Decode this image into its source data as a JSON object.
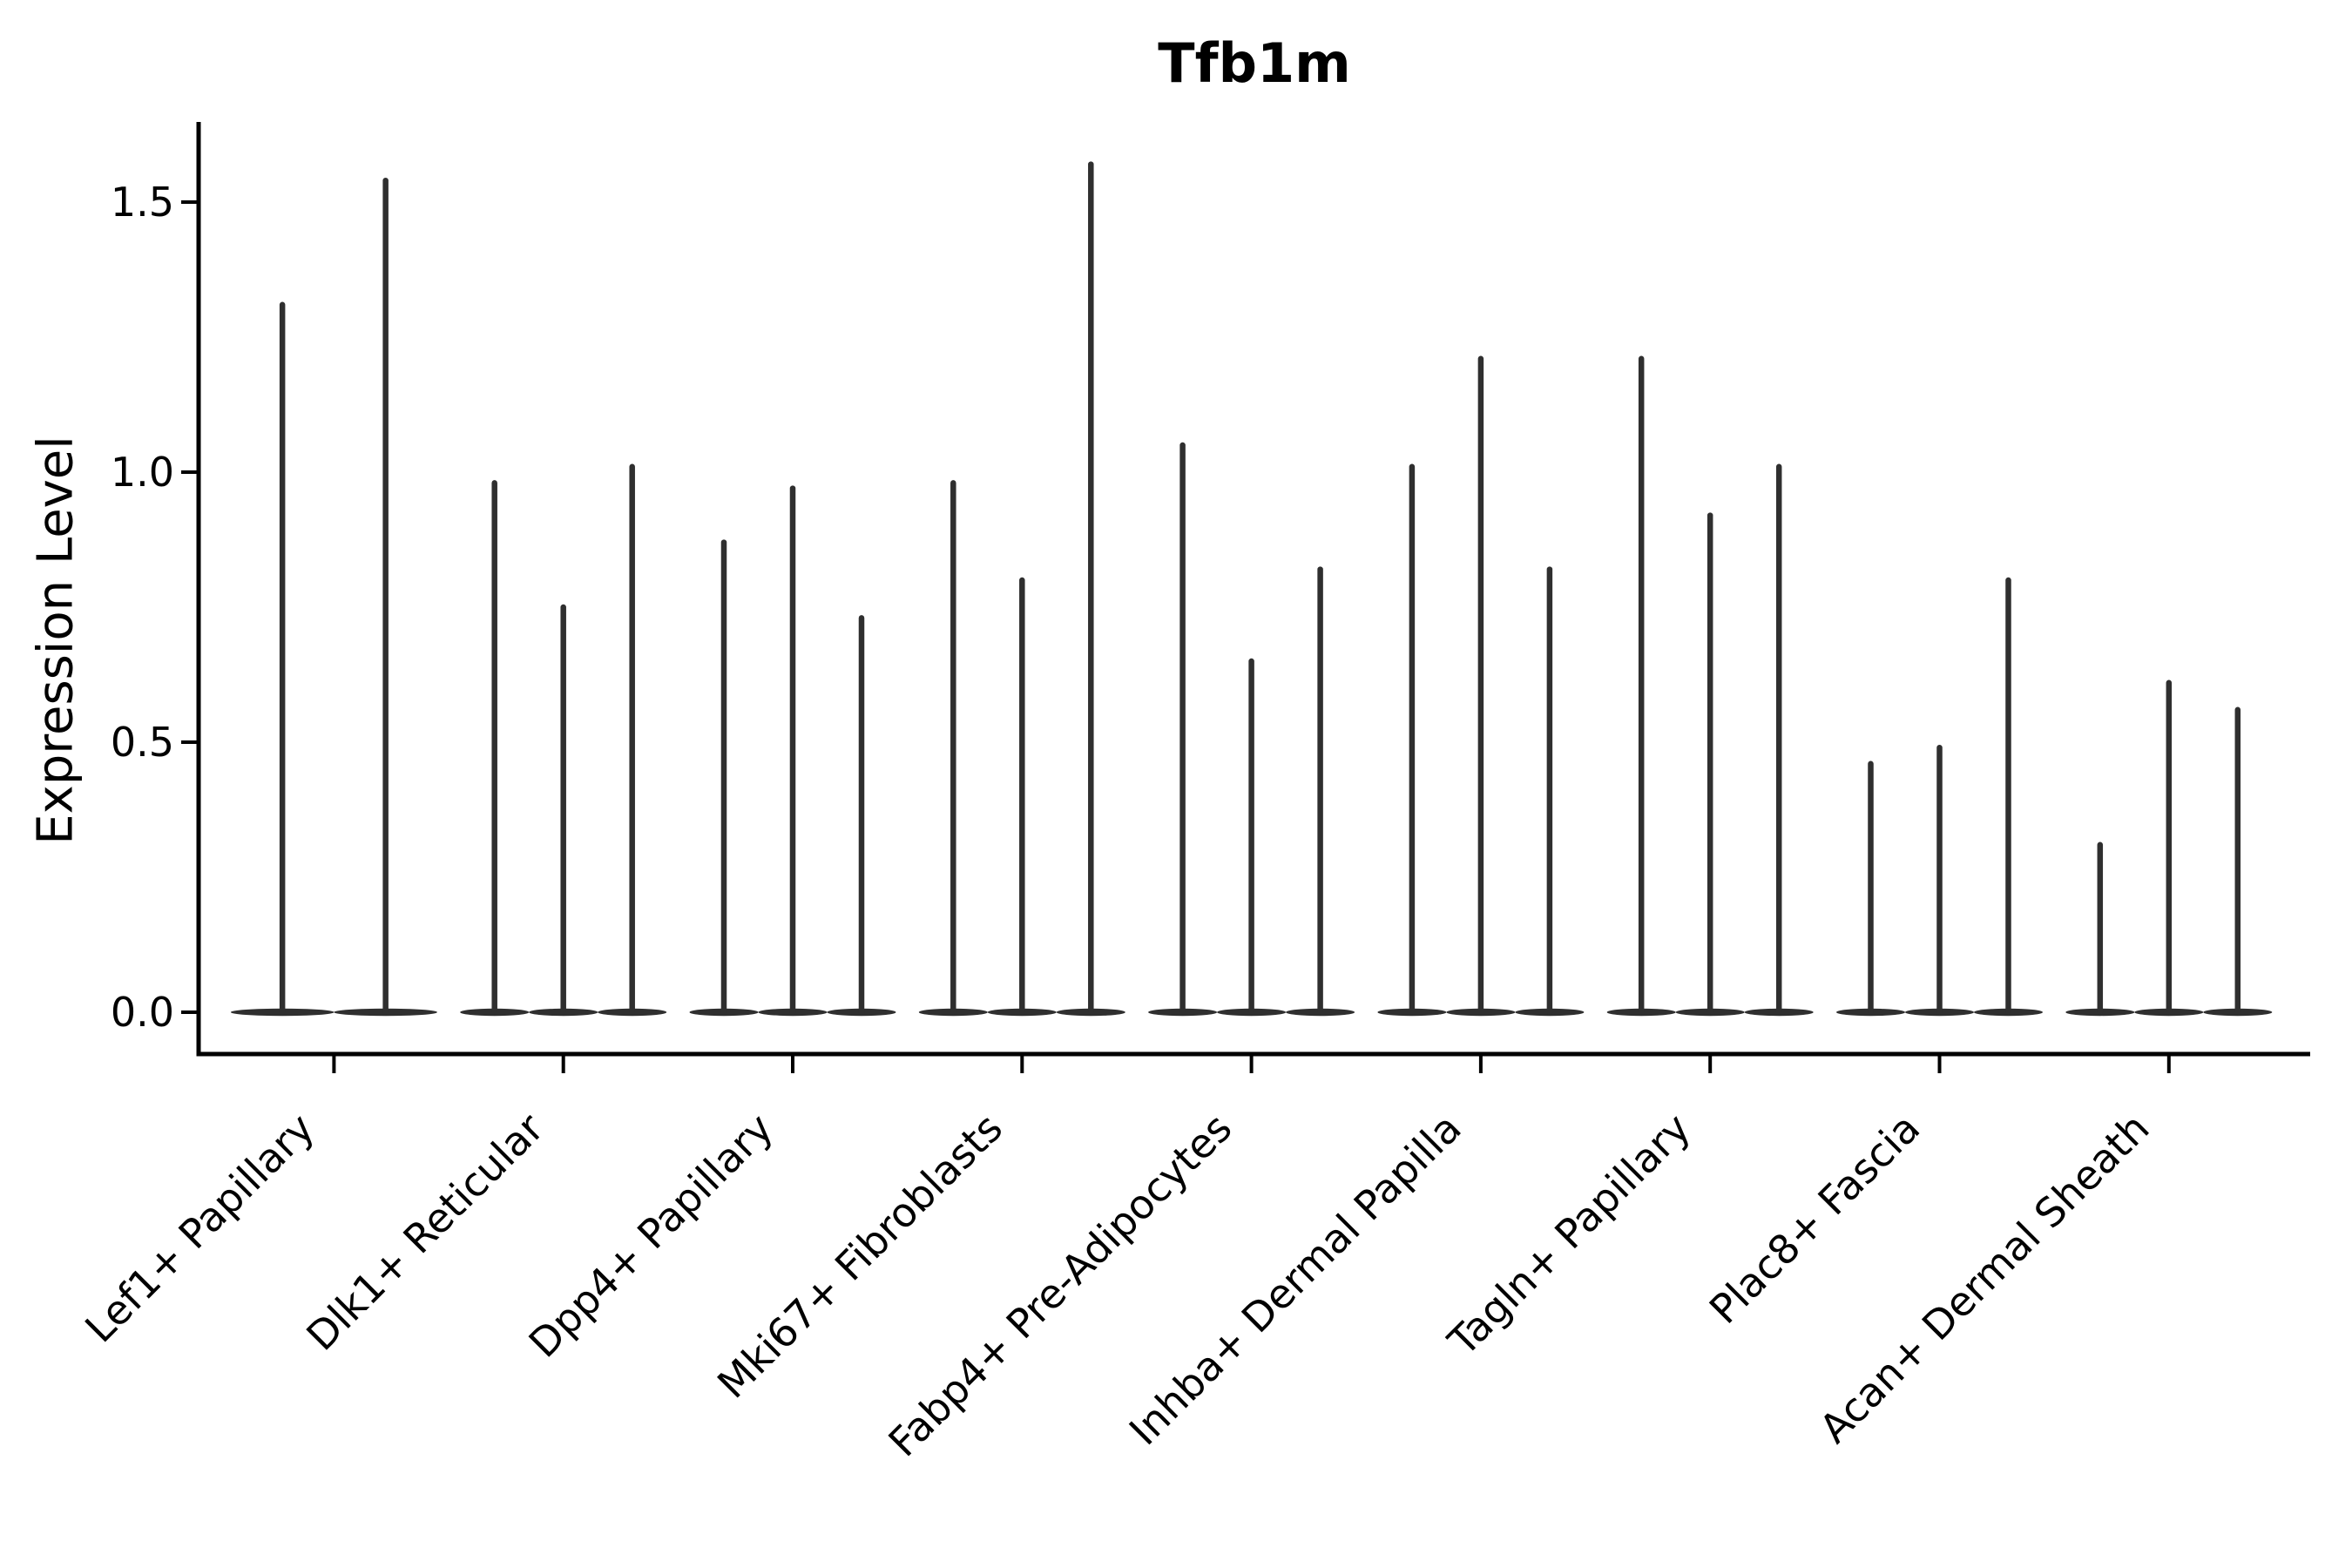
{
  "title": "Tfb1m",
  "colors": {
    "violin": "#2f2f2f",
    "axis": "#000000",
    "text": "#000000",
    "background": "#ffffff"
  },
  "chart_data": {
    "type": "violin",
    "title": "Tfb1m",
    "xlabel": "",
    "ylabel": "Expression Level",
    "yticks": [
      0.0,
      0.5,
      1.0,
      1.5
    ],
    "ytick_labels": [
      "0.0",
      "0.5",
      "1.0",
      "1.5"
    ],
    "ylim": [
      -0.08,
      1.65
    ],
    "grid": false,
    "legend": "none",
    "shape_note": "needle-style violins: dense flat base at expression 0 with a thin spike rising to the maximum expression value",
    "categories": [
      "Lef1+ Papillary",
      "Dlk1+ Reticular",
      "Dpp4+ Papillary",
      "Mki67+ Fibroblasts",
      "Fabp4+ Pre-Adipocytes",
      "Inhba+ Dermal Papilla",
      "Tagln+ Papillary",
      "Plac8+ Fascia",
      "Acan+ Dermal Sheath"
    ],
    "series": [
      {
        "category": "Lef1+ Papillary",
        "violin_max": [
          1.31,
          1.54
        ]
      },
      {
        "category": "Dlk1+ Reticular",
        "violin_max": [
          0.98,
          0.75,
          1.01
        ]
      },
      {
        "category": "Dpp4+ Papillary",
        "violin_max": [
          0.87,
          0.97,
          0.73
        ]
      },
      {
        "category": "Mki67+ Fibroblasts",
        "violin_max": [
          0.98,
          0.8,
          1.57
        ]
      },
      {
        "category": "Fabp4+ Pre-Adipocytes",
        "violin_max": [
          1.05,
          0.65,
          0.82
        ]
      },
      {
        "category": "Inhba+ Dermal Papilla",
        "violin_max": [
          1.01,
          1.21,
          0.82
        ]
      },
      {
        "category": "Tagln+ Papillary",
        "violin_max": [
          1.21,
          0.92,
          1.01
        ]
      },
      {
        "category": "Plac8+ Fascia",
        "violin_max": [
          0.46,
          0.49,
          0.8
        ]
      },
      {
        "category": "Acan+ Dermal Sheath",
        "violin_max": [
          0.31,
          0.61,
          0.56
        ]
      }
    ]
  }
}
